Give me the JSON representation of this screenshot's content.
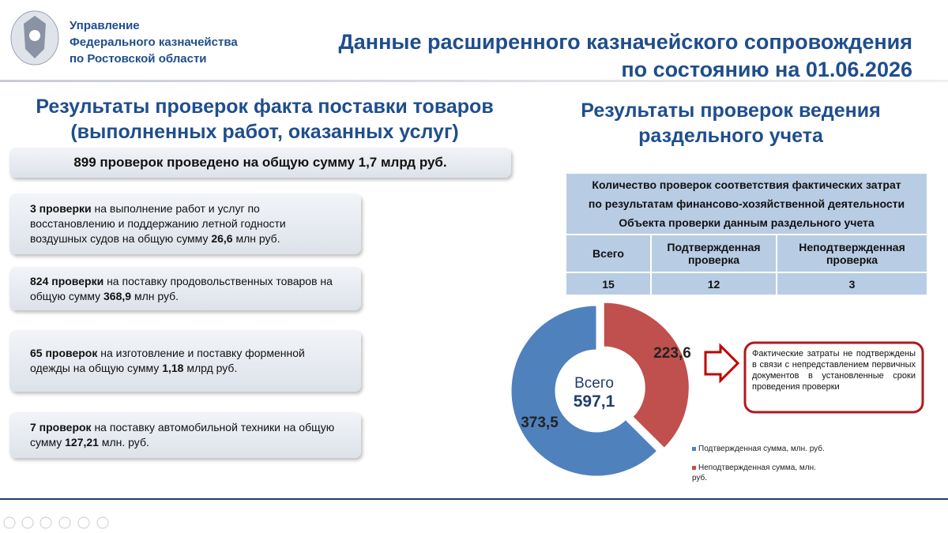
{
  "header": {
    "org": [
      "Управление",
      "Федерального казначейства",
      "по Ростовской области"
    ],
    "title": [
      "Данные расширенного казначейского сопровождения",
      "по состоянию на 01.06.2026"
    ]
  },
  "left": {
    "title": [
      "Результаты проверок факта поставки товаров",
      "(выполненных работ, оказанных услуг)"
    ],
    "summary": "899 проверок проведено на общую сумму 1,7 млрд руб.",
    "items": [
      {
        "parts": [
          {
            "text": "3 проверки",
            "bold": true
          },
          {
            "text": " на выполнение работ и услуг по восстановлению и поддержанию летной годности воздушных судов на общую сумму ",
            "bold": false
          },
          {
            "text": "26,6",
            "bold": true
          },
          {
            "text": " млн руб.",
            "bold": false
          }
        ]
      },
      {
        "parts": [
          {
            "text": "824 проверки",
            "bold": true
          },
          {
            "text": " на поставку продовольственных товаров на общую сумму ",
            "bold": false
          },
          {
            "text": "368,9",
            "bold": true
          },
          {
            "text": " млн руб.",
            "bold": false
          }
        ]
      },
      {
        "parts": [
          {
            "text": "65 проверок",
            "bold": true
          },
          {
            "text": " на изготовление и поставку форменной одежды на общую сумму ",
            "bold": false
          },
          {
            "text": "1,18",
            "bold": true
          },
          {
            "text": " млрд руб.",
            "bold": false
          }
        ]
      },
      {
        "parts": [
          {
            "text": "7 проверок",
            "bold": true
          },
          {
            "text": " на поставку автомобильной техники на общую сумму ",
            "bold": false
          },
          {
            "text": "127,21",
            "bold": true
          },
          {
            "text": " млн. руб.",
            "bold": false
          }
        ]
      }
    ]
  },
  "right": {
    "title": [
      "Результаты проверок ведения",
      "раздельного учета"
    ],
    "table": {
      "caption": [
        "Количество проверок соответствия фактических затрат",
        "по результатам финансово-хозяйственной деятельности",
        "Объекта проверки данным раздельного учета"
      ],
      "headers": [
        "Всего",
        "Подтвержденная проверка",
        "Неподтвержденная проверка"
      ],
      "row": [
        15,
        12,
        3
      ]
    },
    "callout": "Фактические затраты не подтверждены в связи с непредставлением первичных документов в установленные сроки проведения проверки"
  },
  "chart_data": {
    "type": "donut",
    "categories": [
      "Подтвержденная сумма, млн. руб.",
      "Неподтвержденная сумма, млн. руб."
    ],
    "values": [
      373.5,
      223.6
    ],
    "value_labels": [
      "373,5",
      "223,6"
    ],
    "colors": [
      "#4f81bd",
      "#c0504d"
    ],
    "center_label": "Всего",
    "total": {
      "value": 597.1,
      "label": "597,1"
    }
  }
}
